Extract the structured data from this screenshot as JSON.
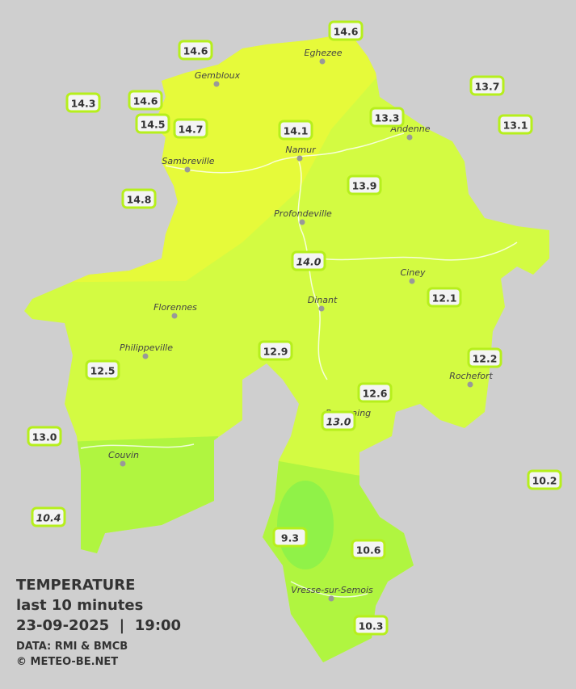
{
  "legend": {
    "title": "TEMPERATURE",
    "subtitle": "last 10 minutes",
    "datetime": "23-09-2025  |  19:00",
    "source": "DATA: RMI & BMCB",
    "credit": "© METEO-BE.NET"
  },
  "cities": [
    "Eghezee",
    "Gembloux",
    "Andenne",
    "Namur",
    "Sambreville",
    "Profondeville",
    "Ciney",
    "Florennes",
    "Dinant",
    "Philippeville",
    "Rochefort",
    "Beauraing",
    "Couvin",
    "Vresse-sur-Semois"
  ],
  "stations": [
    {
      "value": "14.6",
      "italic": false
    },
    {
      "value": "14.6",
      "italic": false
    },
    {
      "value": "14.3",
      "italic": false
    },
    {
      "value": "14.6",
      "italic": false
    },
    {
      "value": "14.5",
      "italic": false
    },
    {
      "value": "14.7",
      "italic": false
    },
    {
      "value": "14.1",
      "italic": false
    },
    {
      "value": "13.3",
      "italic": false
    },
    {
      "value": "13.7",
      "italic": false
    },
    {
      "value": "13.1",
      "italic": false
    },
    {
      "value": "14.8",
      "italic": false
    },
    {
      "value": "13.9",
      "italic": false
    },
    {
      "value": "14.0",
      "italic": true
    },
    {
      "value": "12.1",
      "italic": false
    },
    {
      "value": "12.9",
      "italic": false
    },
    {
      "value": "12.2",
      "italic": false
    },
    {
      "value": "12.5",
      "italic": false
    },
    {
      "value": "12.6",
      "italic": false
    },
    {
      "value": "13.0",
      "italic": true
    },
    {
      "value": "13.0",
      "italic": false
    },
    {
      "value": "10.2",
      "italic": false
    },
    {
      "value": "10.4",
      "italic": true
    },
    {
      "value": "9.3",
      "italic": false
    },
    {
      "value": "10.6",
      "italic": false
    },
    {
      "value": "10.3",
      "italic": false
    }
  ]
}
